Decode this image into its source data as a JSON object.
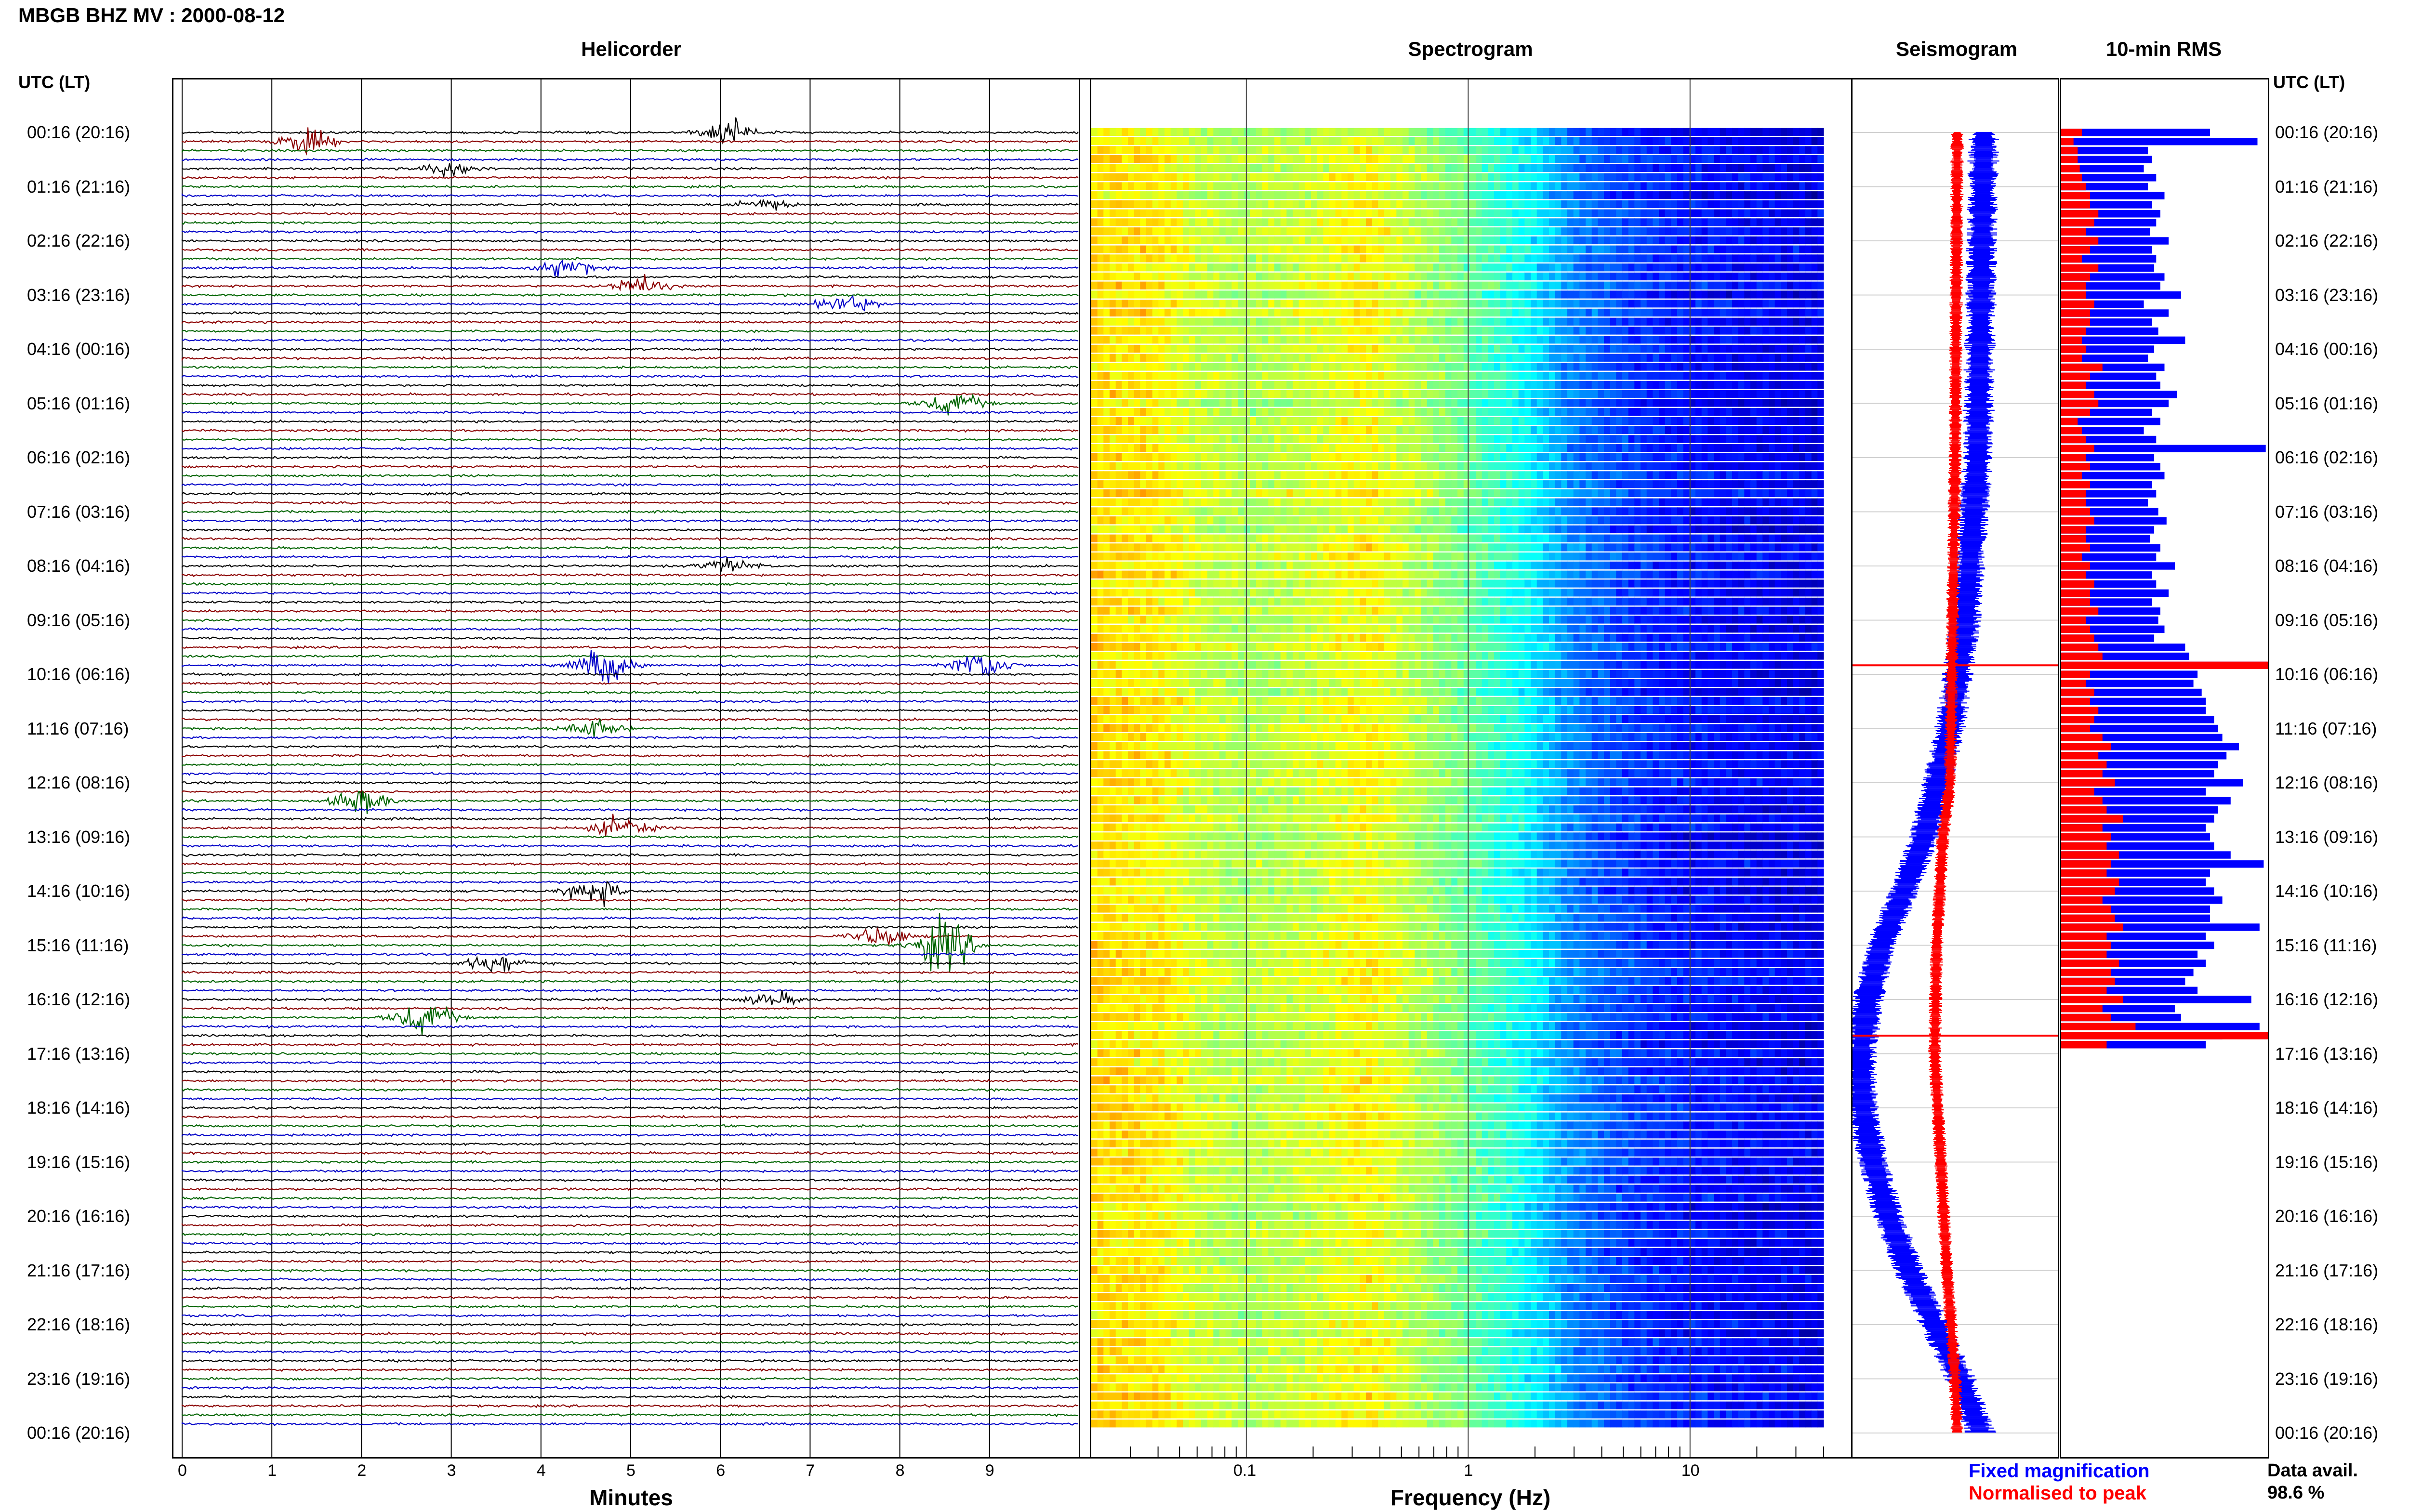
{
  "station_title": "MBGB BHZ MV : 2000-08-12",
  "time_axis_label": "UTC (LT)",
  "panels": {
    "helicorder": "Helicorder",
    "spectrogram": "Spectrogram",
    "seismogram": "Seismogram",
    "rms": "10-min RMS"
  },
  "time_labels": [
    "00:16 (20:16)",
    "01:16 (21:16)",
    "02:16 (22:16)",
    "03:16 (23:16)",
    "04:16 (00:16)",
    "05:16 (01:16)",
    "06:16 (02:16)",
    "07:16 (03:16)",
    "08:16 (04:16)",
    "09:16 (05:16)",
    "10:16 (06:16)",
    "11:16 (07:16)",
    "12:16 (08:16)",
    "13:16 (09:16)",
    "14:16 (10:16)",
    "15:16 (11:16)",
    "16:16 (12:16)",
    "17:16 (13:16)",
    "18:16 (14:16)",
    "19:16 (15:16)",
    "20:16 (16:16)",
    "21:16 (17:16)",
    "22:16 (18:16)",
    "23:16 (19:16)",
    "00:16 (20:16)"
  ],
  "legend": {
    "fixed": "Fixed magnification",
    "normalised": "Normalised to peak",
    "fixed_color": "#0000ff",
    "normalised_color": "#ff0000"
  },
  "data_avail": {
    "label": "Data avail.",
    "value": "98.6 %"
  },
  "chart_data": [
    {
      "type": "line",
      "name": "helicorder",
      "xlabel": "Minutes",
      "ylabel": "UTC (LT)",
      "xlim": [
        0,
        10
      ],
      "x_ticks": [
        "0",
        "1",
        "2",
        "3",
        "4",
        "5",
        "6",
        "7",
        "8",
        "9"
      ],
      "traces_per_hour": 6,
      "trace_colors": [
        "#000000",
        "#8b0000",
        "#006400",
        "#0000c8"
      ],
      "events": [
        {
          "trace": 0,
          "minute": 6.1,
          "amp": 1.6
        },
        {
          "trace": 1,
          "minute": 1.4,
          "amp": 1.5
        },
        {
          "trace": 4,
          "minute": 3.0,
          "amp": 1.0
        },
        {
          "trace": 8,
          "minute": 6.5,
          "amp": 0.8
        },
        {
          "trace": 15,
          "minute": 4.3,
          "amp": 1.2
        },
        {
          "trace": 17,
          "minute": 5.1,
          "amp": 1.3
        },
        {
          "trace": 19,
          "minute": 7.4,
          "amp": 1.2
        },
        {
          "trace": 30,
          "minute": 8.6,
          "amp": 1.5
        },
        {
          "trace": 48,
          "minute": 6.1,
          "amp": 0.9
        },
        {
          "trace": 59,
          "minute": 4.7,
          "amp": 2.5
        },
        {
          "trace": 59,
          "minute": 8.9,
          "amp": 2.0
        },
        {
          "trace": 66,
          "minute": 4.6,
          "amp": 1.3
        },
        {
          "trace": 74,
          "minute": 2.0,
          "amp": 1.6
        },
        {
          "trace": 77,
          "minute": 4.9,
          "amp": 1.5
        },
        {
          "trace": 84,
          "minute": 4.6,
          "amp": 1.7
        },
        {
          "trace": 89,
          "minute": 7.8,
          "amp": 1.3
        },
        {
          "trace": 90,
          "minute": 8.5,
          "amp": 3.5
        },
        {
          "trace": 92,
          "minute": 3.5,
          "amp": 1.3
        },
        {
          "trace": 96,
          "minute": 6.6,
          "amp": 0.9
        },
        {
          "trace": 98,
          "minute": 2.7,
          "amp": 2.2
        }
      ]
    },
    {
      "type": "heatmap",
      "name": "spectrogram",
      "xlabel": "Frequency (Hz)",
      "x_scale": "log",
      "x_ticks": [
        "0.1",
        "1",
        "10"
      ],
      "xlim": [
        0.02,
        40
      ],
      "colormap": "jet",
      "profile_hz": [
        0.02,
        0.04,
        0.06,
        0.1,
        0.2,
        0.35,
        0.6,
        1.0,
        1.8,
        3.0,
        6.0,
        10.0,
        20.0,
        40.0
      ],
      "profile_level": [
        0.66,
        0.64,
        0.58,
        0.55,
        0.58,
        0.63,
        0.55,
        0.48,
        0.38,
        0.25,
        0.17,
        0.14,
        0.12,
        0.1
      ]
    },
    {
      "type": "line",
      "name": "seismogram",
      "series": [
        {
          "name": "Fixed magnification",
          "color": "#0000ff",
          "hours": [
            0,
            3,
            6,
            9,
            11,
            13,
            14,
            15,
            16,
            17,
            18,
            19,
            20,
            21,
            22,
            23,
            24
          ],
          "offset": [
            0.28,
            0.25,
            0.22,
            0.1,
            -0.05,
            -0.3,
            -0.5,
            -0.72,
            -0.85,
            -0.92,
            -0.9,
            -0.8,
            -0.65,
            -0.45,
            -0.2,
            0.05,
            0.25
          ],
          "spread": 0.12
        },
        {
          "name": "Normalised to peak",
          "color": "#ff0000",
          "hours": [
            0,
            6,
            12,
            13,
            15,
            17,
            19,
            21,
            23,
            24
          ],
          "offset": [
            0.02,
            0.0,
            -0.05,
            -0.12,
            -0.18,
            -0.2,
            -0.14,
            -0.08,
            0.0,
            0.02
          ],
          "spread": 0.05
        }
      ]
    },
    {
      "type": "bar",
      "name": "10-min RMS",
      "series": [
        {
          "name": "Fixed magnification",
          "color": "#0000ff"
        },
        {
          "name": "Normalised to peak",
          "color": "#ff0000"
        }
      ],
      "peak_traces": [
        59,
        100
      ],
      "rms_fixed": [
        0.72,
        0.95,
        0.42,
        0.44,
        0.4,
        0.46,
        0.42,
        0.5,
        0.44,
        0.48,
        0.46,
        0.43,
        0.52,
        0.44,
        0.46,
        0.45,
        0.5,
        0.48,
        0.58,
        0.4,
        0.52,
        0.44,
        0.47,
        0.6,
        0.45,
        0.42,
        0.5,
        0.46,
        0.48,
        0.56,
        0.52,
        0.44,
        0.48,
        0.4,
        0.46,
        0.99,
        0.45,
        0.48,
        0.5,
        0.44,
        0.46,
        0.42,
        0.47,
        0.51,
        0.45,
        0.43,
        0.48,
        0.46,
        0.55,
        0.44,
        0.46,
        0.52,
        0.44,
        0.48,
        0.47,
        0.5,
        0.45,
        0.6,
        0.62,
        1.0,
        0.66,
        0.64,
        0.68,
        0.7,
        0.7,
        0.74,
        0.76,
        0.78,
        0.86,
        0.8,
        0.76,
        0.74,
        0.88,
        0.7,
        0.82,
        0.76,
        0.74,
        0.7,
        0.72,
        0.74,
        0.82,
        0.98,
        0.72,
        0.7,
        0.74,
        0.78,
        0.72,
        0.72,
        0.96,
        0.7,
        0.74,
        0.66,
        0.7,
        0.64,
        0.6,
        0.66,
        0.92,
        0.55,
        0.58,
        0.96,
        0.78,
        0.7
      ],
      "rms_norm": [
        0.1,
        0.06,
        0.08,
        0.08,
        0.09,
        0.1,
        0.12,
        0.14,
        0.14,
        0.18,
        0.16,
        0.12,
        0.18,
        0.14,
        0.1,
        0.18,
        0.14,
        0.12,
        0.12,
        0.16,
        0.14,
        0.14,
        0.12,
        0.1,
        0.12,
        0.1,
        0.2,
        0.14,
        0.12,
        0.16,
        0.18,
        0.14,
        0.08,
        0.1,
        0.12,
        0.16,
        0.12,
        0.14,
        0.1,
        0.14,
        0.12,
        0.12,
        0.14,
        0.16,
        0.12,
        0.12,
        0.14,
        0.1,
        0.14,
        0.12,
        0.16,
        0.14,
        0.14,
        0.18,
        0.12,
        0.14,
        0.16,
        0.18,
        0.2,
        1.0,
        0.14,
        0.12,
        0.16,
        0.14,
        0.18,
        0.16,
        0.14,
        0.2,
        0.24,
        0.18,
        0.22,
        0.2,
        0.26,
        0.16,
        0.2,
        0.22,
        0.3,
        0.2,
        0.24,
        0.22,
        0.28,
        0.24,
        0.22,
        0.28,
        0.26,
        0.2,
        0.24,
        0.26,
        0.3,
        0.22,
        0.24,
        0.22,
        0.28,
        0.24,
        0.26,
        0.22,
        0.3,
        0.2,
        0.24,
        0.36,
        1.0,
        0.22
      ]
    }
  ]
}
